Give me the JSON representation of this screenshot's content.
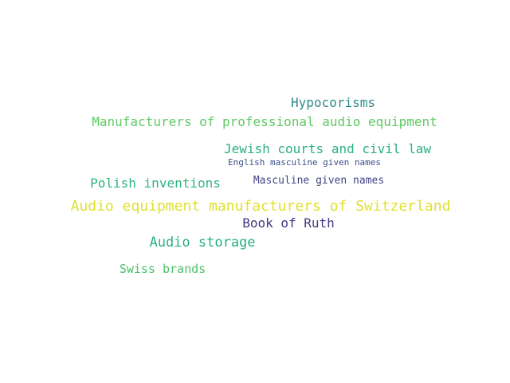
{
  "words": [
    {
      "text": "Hypocorisms",
      "color": "#2f8a8c"
    },
    {
      "text": "Manufacturers of professional audio equipment",
      "color": "#5ec962"
    },
    {
      "text": "Jewish courts and civil law",
      "color": "#2ab07f"
    },
    {
      "text": "English masculine given names",
      "color": "#3b4f8a"
    },
    {
      "text": "Polish inventions",
      "color": "#2eb37c"
    },
    {
      "text": "Masculine given names",
      "color": "#414487"
    },
    {
      "text": "Audio equipment manufacturers of Switzerland",
      "color": "#e0e030"
    },
    {
      "text": "Book of Ruth",
      "color": "#453781"
    },
    {
      "text": "Audio storage",
      "color": "#29af7f"
    },
    {
      "text": "Swiss brands",
      "color": "#4cc26c"
    }
  ]
}
